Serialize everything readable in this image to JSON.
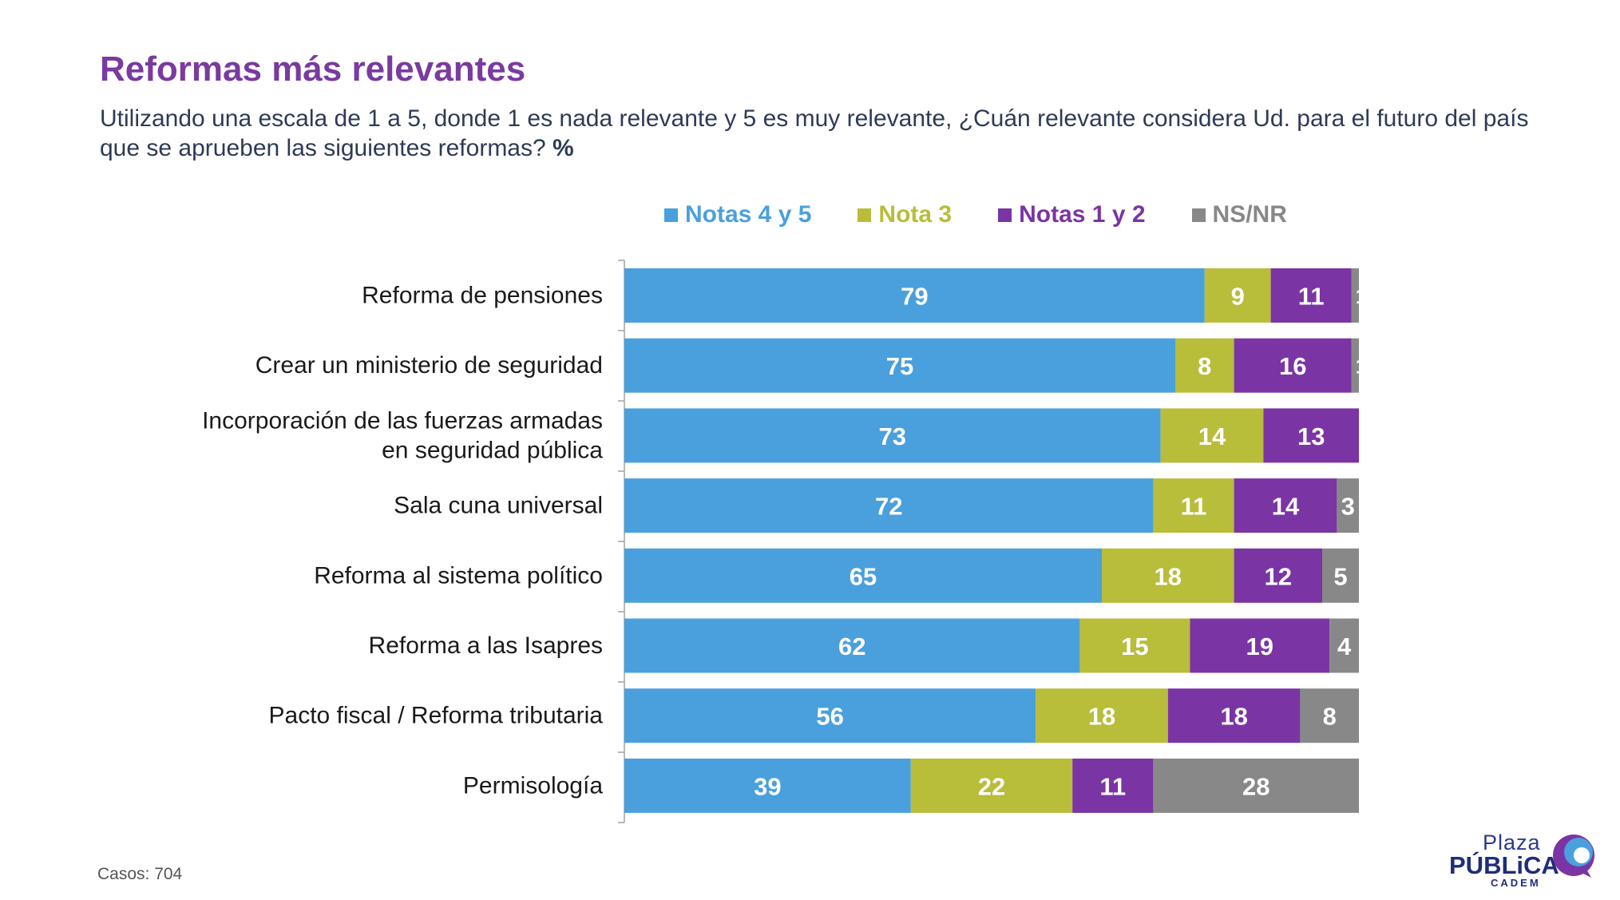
{
  "title": "Reformas más relevantes",
  "subtitle_text": "Utilizando una escala de 1 a 5, donde 1 es nada relevante y 5 es muy relevante, ¿Cuán relevante considera Ud. para el futuro del país que se aprueben las siguientes reformas?",
  "subtitle_unit": "%",
  "footer_note": "Casos: 704",
  "logo": {
    "line1": "Plaza",
    "line2": "PÚBLiCA",
    "line3": "CADEM"
  },
  "chart_data": {
    "type": "bar",
    "orientation": "horizontal",
    "stacked": true,
    "xlim": [
      0,
      100
    ],
    "legend_position": "top",
    "grid": false,
    "categories": [
      "Reforma de pensiones",
      "Crear un ministerio de seguridad",
      "Incorporación de las fuerzas armadas en seguridad pública",
      "Sala cuna universal",
      "Reforma al sistema político",
      "Reforma a las Isapres",
      "Pacto fiscal / Reforma tributaria",
      "Permisología"
    ],
    "category_lines": [
      [
        "Reforma de pensiones"
      ],
      [
        "Crear un ministerio de seguridad"
      ],
      [
        "Incorporación de las fuerzas armadas",
        "en seguridad pública"
      ],
      [
        "Sala cuna universal"
      ],
      [
        "Reforma al sistema político"
      ],
      [
        "Reforma a las Isapres"
      ],
      [
        "Pacto fiscal / Reforma tributaria"
      ],
      [
        "Permisología"
      ]
    ],
    "series": [
      {
        "name": "Notas 4 y 5",
        "color": "#4aa0dc",
        "values": [
          79,
          75,
          73,
          72,
          65,
          62,
          56,
          39
        ]
      },
      {
        "name": "Nota 3",
        "color": "#b8bd3a",
        "values": [
          9,
          8,
          14,
          11,
          18,
          15,
          18,
          22
        ]
      },
      {
        "name": "Notas 1 y 2",
        "color": "#7b34a4",
        "values": [
          11,
          16,
          13,
          14,
          12,
          19,
          18,
          11
        ]
      },
      {
        "name": "NS/NR",
        "color": "#888888",
        "values": [
          1,
          1,
          0,
          3,
          5,
          4,
          8,
          28
        ]
      }
    ],
    "data_label_color": "#ffffff"
  }
}
